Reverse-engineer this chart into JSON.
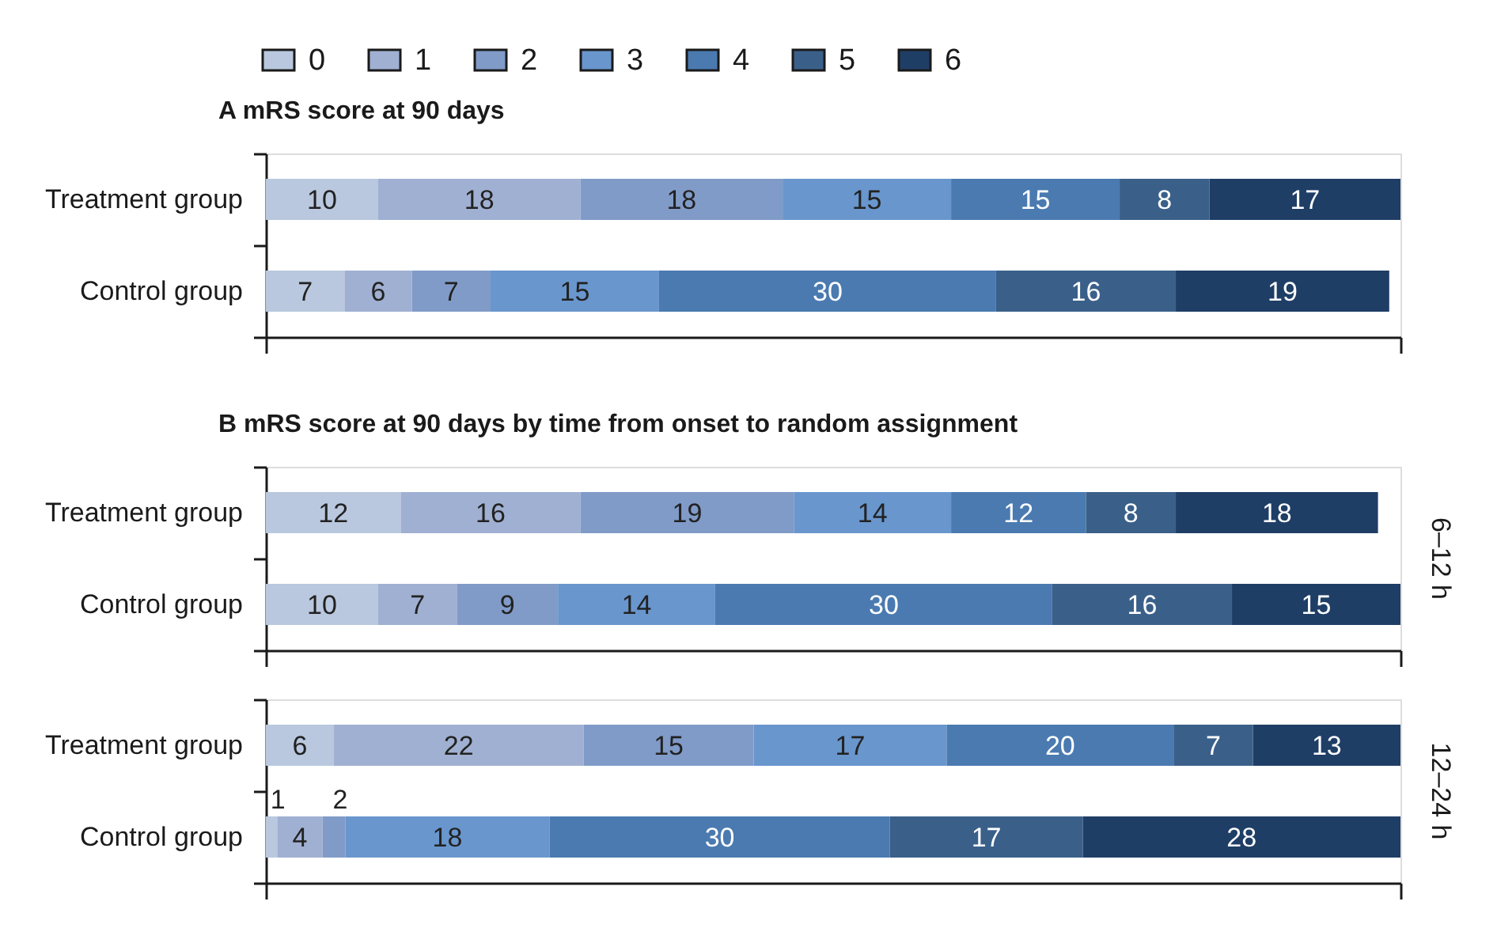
{
  "chart_data": [
    {
      "type": "bar",
      "orientation": "horizontal",
      "stacked": true,
      "title": "A mRS score at 90 days",
      "categories": [
        "Treatment group",
        "Control group"
      ],
      "series": [
        {
          "name": "0",
          "color": "#b9c8de",
          "values": [
            10,
            7
          ]
        },
        {
          "name": "1",
          "color": "#a0b0d2",
          "values": [
            18,
            6
          ]
        },
        {
          "name": "2",
          "color": "#809bc8",
          "values": [
            18,
            7
          ]
        },
        {
          "name": "3",
          "color": "#6996cd",
          "values": [
            15,
            15
          ]
        },
        {
          "name": "4",
          "color": "#4a7ab0",
          "values": [
            15,
            30
          ]
        },
        {
          "name": "5",
          "color": "#3a608a",
          "values": [
            8,
            16
          ]
        },
        {
          "name": "6",
          "color": "#1f3e66",
          "values": [
            17,
            19
          ]
        }
      ],
      "xlim": [
        0,
        101
      ],
      "tick_labels": "y",
      "data_labels": true,
      "legend": "top left"
    },
    {
      "type": "bar",
      "orientation": "horizontal",
      "stacked": true,
      "title": "B mRS score at 90 days by time from onset to random assignment",
      "categories": [
        "Treatment group",
        "Control group"
      ],
      "series": [
        {
          "color": "#b9c8de",
          "values": [
            12,
            10
          ]
        },
        {
          "color": "#a0b0d2",
          "values": [
            16,
            7
          ]
        },
        {
          "color": "#809bc8",
          "values": [
            19,
            9
          ]
        },
        {
          "color": "#6996cd",
          "values": [
            14,
            14
          ]
        },
        {
          "color": "#4a7ab0",
          "values": [
            12,
            30
          ]
        },
        {
          "color": "#3a608a",
          "values": [
            8,
            16
          ]
        },
        {
          "color": "#1f3e66",
          "values": [
            18,
            15
          ]
        }
      ],
      "xlim": [
        0,
        101
      ],
      "tick_labels": "y",
      "data_labels": true,
      "annotations": [
        "6–12 h"
      ]
    },
    {
      "type": "bar",
      "orientation": "horizontal",
      "stacked": true,
      "categories": [
        "Treatment group",
        "Control group"
      ],
      "series": [
        {
          "color": "#b9c8de",
          "values": [
            6,
            1
          ]
        },
        {
          "color": "#a0b0d2",
          "values": [
            22,
            4
          ]
        },
        {
          "color": "#809bc8",
          "values": [
            15,
            2
          ]
        },
        {
          "color": "#6996cd",
          "values": [
            17,
            18
          ]
        },
        {
          "color": "#4a7ab0",
          "values": [
            20,
            30
          ]
        },
        {
          "color": "#3a608a",
          "values": [
            7,
            17
          ]
        },
        {
          "color": "#1f3e66",
          "values": [
            13,
            28
          ]
        }
      ],
      "xlim": [
        0,
        100
      ],
      "tick_labels": "y",
      "data_labels": true,
      "annotations": [
        "12–24 h"
      ]
    }
  ]
}
